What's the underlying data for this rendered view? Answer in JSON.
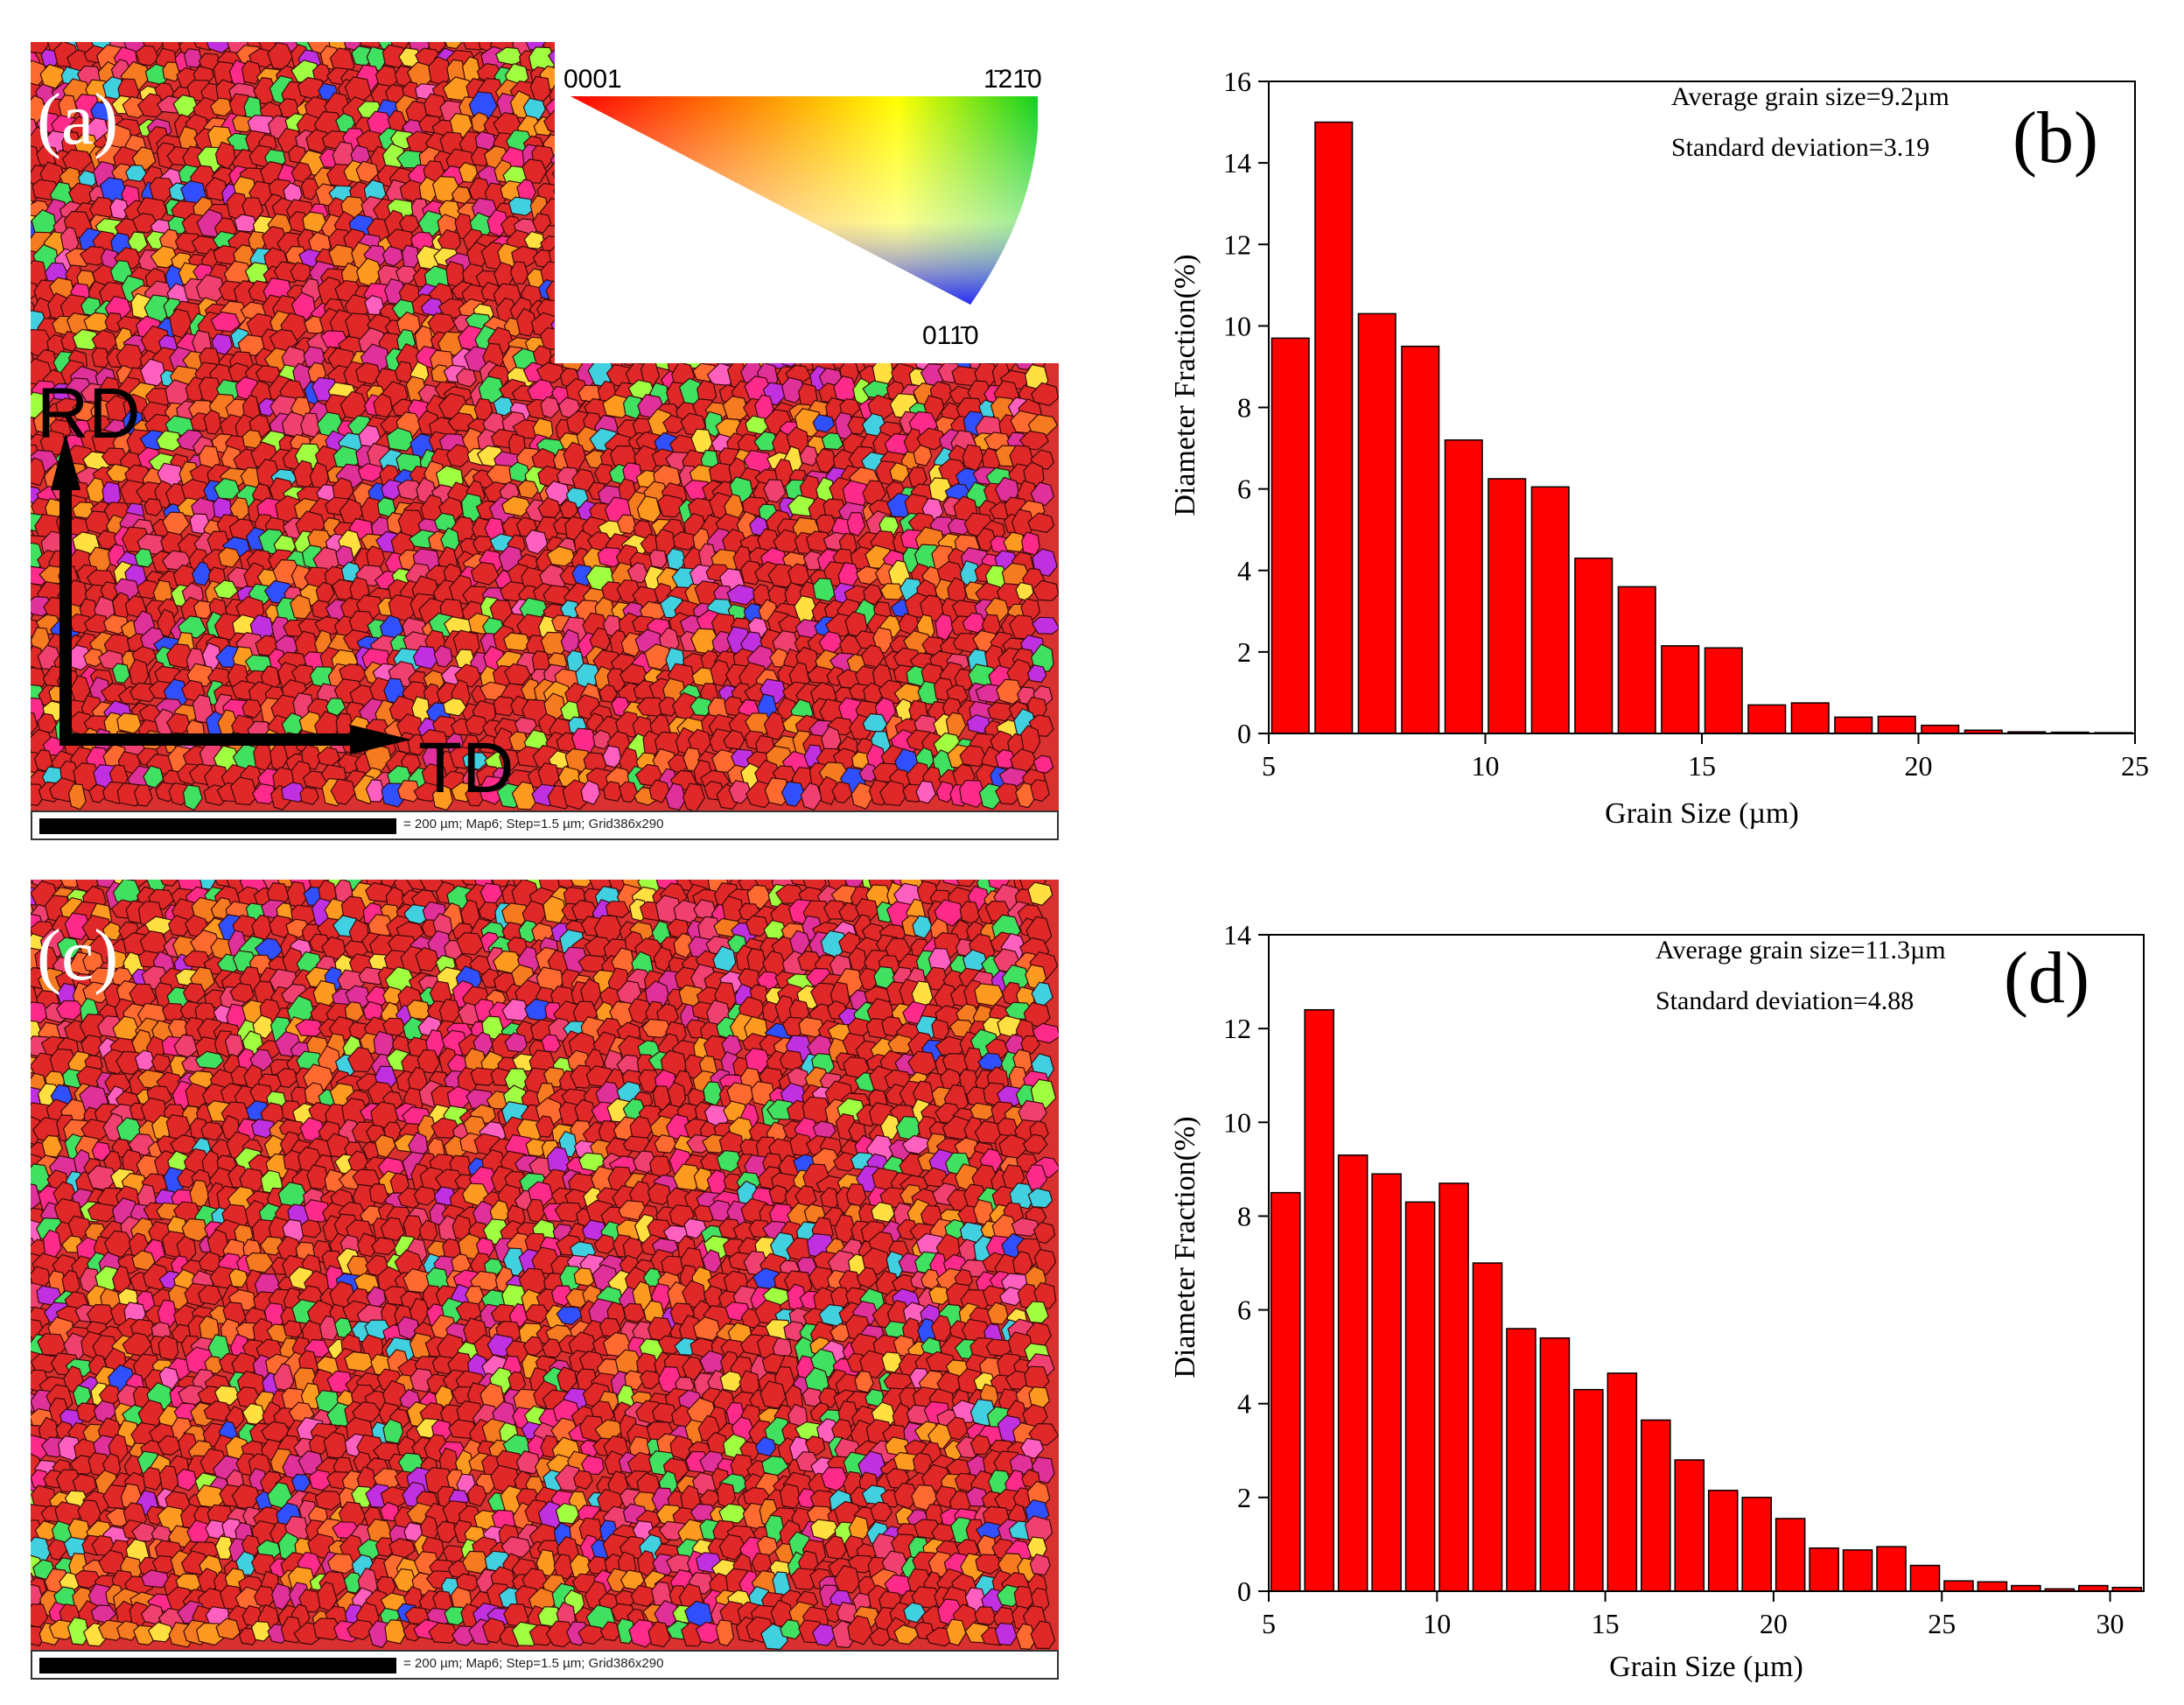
{
  "panels": {
    "a": {
      "label": "(a)",
      "axes": {
        "rd": "RD",
        "td": "TD"
      },
      "ipf_key": {
        "corner_top_left": "0001",
        "corner_top_right": "1̄21̄0",
        "corner_bottom": "011̄0"
      },
      "scalebar_text": "= 200 µm; Map6; Step=1.5 µm; Grid386x290",
      "colors": {
        "dominant": "#e02828",
        "others": [
          "#f04070",
          "#ff6a30",
          "#ff2a8a",
          "#f57a20",
          "#e0309a",
          "#ff9a20",
          "#40e060",
          "#ffe040",
          "#3050ff",
          "#40d0e0",
          "#c030e0",
          "#ff60c0",
          "#a0ff40"
        ]
      }
    },
    "c": {
      "label": "(c)",
      "scalebar_text": "= 200 µm; Map6; Step=1.5 µm; Grid386x290"
    }
  },
  "chart_data": [
    {
      "type": "bar",
      "panel_label": "(b)",
      "title": "",
      "xlabel": "Grain Size (µm)",
      "ylabel": "Diameter Fraction(%)",
      "xlim": [
        5,
        25
      ],
      "ylim": [
        0,
        16
      ],
      "xticks": [
        5,
        10,
        15,
        20,
        25
      ],
      "yticks": [
        0,
        2,
        4,
        6,
        8,
        10,
        12,
        14,
        16
      ],
      "bar_color": "#ff0000",
      "annotations": [
        "Average grain size=9.2µm",
        "Standard deviation=3.19"
      ],
      "x": [
        5.5,
        6.5,
        7.5,
        8.5,
        9.5,
        10.5,
        11.5,
        12.5,
        13.5,
        14.5,
        15.5,
        16.5,
        17.5,
        18.5,
        19.5,
        20.5,
        21.5,
        22.5,
        23.5,
        24.5
      ],
      "values": [
        9.7,
        15.0,
        10.3,
        9.5,
        7.2,
        6.25,
        6.05,
        4.3,
        3.6,
        2.15,
        2.1,
        0.7,
        0.75,
        0.4,
        0.42,
        0.2,
        0.08,
        0.04,
        0.03,
        0.02
      ]
    },
    {
      "type": "bar",
      "panel_label": "(d)",
      "title": "",
      "xlabel": "Grain Size (µm)",
      "ylabel": "Diameter Fraction(%)",
      "xlim": [
        5,
        31
      ],
      "ylim": [
        0,
        14
      ],
      "xticks": [
        5,
        10,
        15,
        20,
        25,
        30
      ],
      "yticks": [
        0,
        2,
        4,
        6,
        8,
        10,
        12,
        14
      ],
      "bar_color": "#ff0000",
      "annotations": [
        "Average grain size=11.3µm",
        "Standard deviation=4.88"
      ],
      "x": [
        5.5,
        6.5,
        7.5,
        8.5,
        9.5,
        10.5,
        11.5,
        12.5,
        13.5,
        14.5,
        15.5,
        16.5,
        17.5,
        18.5,
        19.5,
        20.5,
        21.5,
        22.5,
        23.5,
        24.5,
        25.5,
        26.5,
        27.5,
        28.5,
        29.5,
        30.5
      ],
      "values": [
        8.5,
        12.4,
        9.3,
        8.9,
        8.3,
        8.7,
        7.0,
        5.6,
        5.4,
        4.3,
        4.65,
        3.65,
        2.8,
        2.15,
        2.0,
        1.55,
        0.92,
        0.88,
        0.95,
        0.55,
        0.22,
        0.2,
        0.12,
        0.05,
        0.12,
        0.08
      ]
    }
  ]
}
